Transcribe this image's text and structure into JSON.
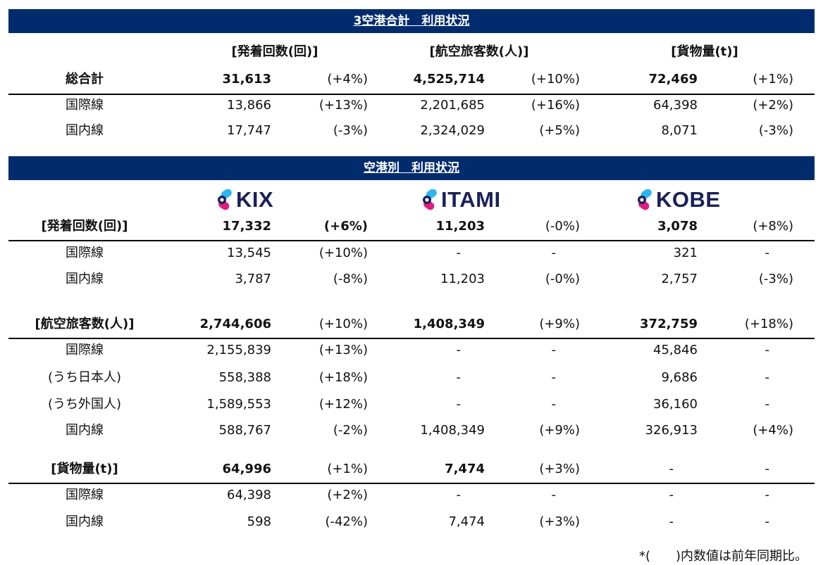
{
  "section1": {
    "title": "3空港合計　利用状況",
    "headers": [
      "[発着回数(回)]",
      "[航空旅客数(人)]",
      "[貨物量(t)]"
    ],
    "rows": [
      {
        "label": "総合計",
        "cells": [
          "31,613",
          "(+4%)",
          "4,525,714",
          "(+10%)",
          "72,469",
          "(+1%)"
        ],
        "bold": [
          true,
          true,
          false,
          true,
          false,
          true,
          false
        ]
      },
      {
        "label": "国際線",
        "cells": [
          "13,866",
          "(+13%)",
          "2,201,685",
          "(+16%)",
          "64,398",
          "(+2%)"
        ],
        "bold": [
          false,
          false,
          false,
          false,
          false,
          false,
          false
        ]
      },
      {
        "label": "国内線",
        "cells": [
          "17,747",
          "(-3%)",
          "2,324,029",
          "(+5%)",
          "8,071",
          "(-3%)"
        ],
        "bold": [
          false,
          false,
          false,
          false,
          false,
          false,
          false
        ]
      }
    ]
  },
  "section2": {
    "title": "空港別　利用状況",
    "logos": [
      {
        "text": "KIX",
        "colors": {
          "cyan": "#29b6f6",
          "magenta": "#e6197e",
          "navy": "#1a1f5c"
        }
      },
      {
        "text": "ITAMI",
        "colors": {
          "cyan": "#29b6f6",
          "magenta": "#e6197e",
          "navy": "#1a1f5c"
        }
      },
      {
        "text": "KOBE",
        "colors": {
          "cyan": "#29b6f6",
          "magenta": "#e6197e",
          "navy": "#1a1f5c"
        }
      }
    ],
    "rows": [
      {
        "label": "[発着回数(回)]",
        "cells": [
          "17,332",
          "(+6%)",
          "11,203",
          "(-0%)",
          "3,078",
          "(+8%)"
        ],
        "bold": [
          true,
          true,
          true,
          true,
          false,
          true,
          false
        ]
      },
      {
        "label": "国際線",
        "cells": [
          "13,545",
          "(+10%)",
          "-",
          "-",
          "321",
          "-"
        ],
        "bold": [
          false,
          false,
          false,
          false,
          false,
          false,
          false
        ]
      },
      {
        "label": "国内線",
        "cells": [
          "3,787",
          "(-8%)",
          "11,203",
          "(-0%)",
          "2,757",
          "(-3%)"
        ],
        "bold": [
          false,
          false,
          false,
          false,
          false,
          false,
          false
        ]
      },
      {
        "label": "[航空旅客数(人)]",
        "cells": [
          "2,744,606",
          "(+10%)",
          "1,408,349",
          "(+9%)",
          "372,759",
          "(+18%)"
        ],
        "bold": [
          true,
          true,
          false,
          true,
          false,
          true,
          false
        ]
      },
      {
        "label": "国際線",
        "cells": [
          "2,155,839",
          "(+13%)",
          "-",
          "-",
          "45,846",
          "-"
        ],
        "bold": [
          false,
          false,
          false,
          false,
          false,
          false,
          false
        ]
      },
      {
        "label": "(うち日本人)",
        "cells": [
          "558,388",
          "(+18%)",
          "-",
          "-",
          "9,686",
          "-"
        ],
        "bold": [
          false,
          false,
          false,
          false,
          false,
          false,
          false
        ]
      },
      {
        "label": "(うち外国人)",
        "cells": [
          "1,589,553",
          "(+12%)",
          "-",
          "-",
          "36,160",
          "-"
        ],
        "bold": [
          false,
          false,
          false,
          false,
          false,
          false,
          false
        ]
      },
      {
        "label": "国内線",
        "cells": [
          "588,767",
          "(-2%)",
          "1,408,349",
          "(+9%)",
          "326,913",
          "(+4%)"
        ],
        "bold": [
          false,
          false,
          false,
          false,
          false,
          false,
          false
        ]
      },
      {
        "label": "[貨物量(t)]",
        "cells": [
          "64,996",
          "(+1%)",
          "7,474",
          "(+3%)",
          "-",
          "-"
        ],
        "bold": [
          true,
          true,
          false,
          true,
          false,
          false,
          false
        ]
      },
      {
        "label": "国際線",
        "cells": [
          "64,398",
          "(+2%)",
          "-",
          "-",
          "-",
          "-"
        ],
        "bold": [
          false,
          false,
          false,
          false,
          false,
          false,
          false
        ]
      },
      {
        "label": "国内線",
        "cells": [
          "598",
          "(-42%)",
          "7,474",
          "(+3%)",
          "-",
          "-"
        ],
        "bold": [
          false,
          false,
          false,
          false,
          false,
          false,
          false
        ]
      }
    ]
  },
  "footnote": "*(　　)内数値は前年同期比。"
}
